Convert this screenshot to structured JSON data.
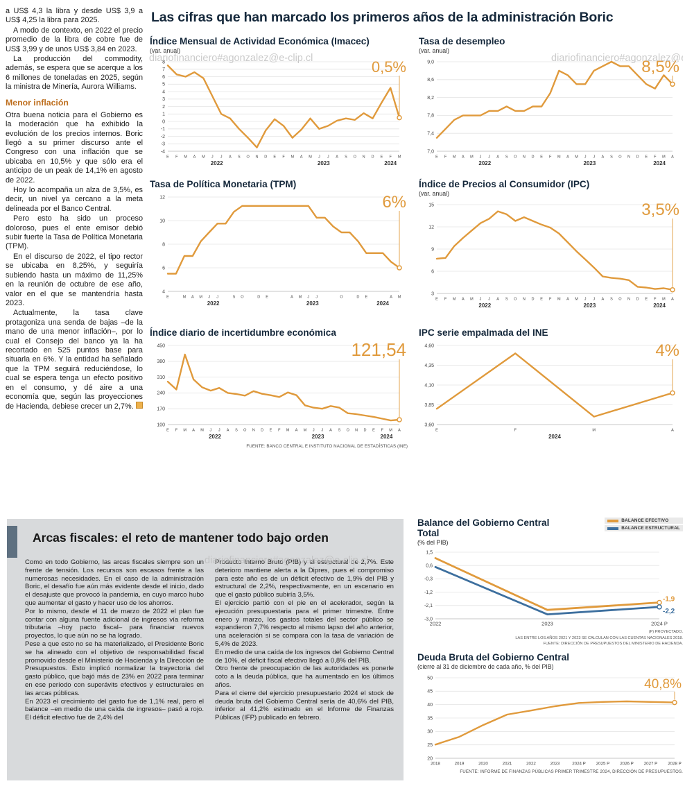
{
  "watermark": "diariofinanciero#agonzalez@e-clip.cl",
  "main_title": "Las cifras que han marcado los primeros años de la administración Boric",
  "charts_source": "FUENTE: BANCO CENTRAL E INSTITUTO NACIONAL DE ESTADÍSTICAS (INE)",
  "colors": {
    "accent_orange": "#E09A3C",
    "accent_blue": "#3D6F9E",
    "headline_navy": "#15283B",
    "subhead_orange": "#BE6F1F",
    "panel_gray": "#D8DADC",
    "title_bar_slate": "#5E7080"
  },
  "left_column": {
    "paragraphs": [
      "a US$ 4,3 la libra y desde US$ 3,9 a US$ 4,25 la libra para 2025.",
      "A modo de contexto, en 2022 el precio promedio de la libra de cobre fue de US$ 3,99 y de unos US$ 3,84 en 2023.",
      "La producción del commodity, además, se espera que se acerque a los 6 millones de toneladas en 2025, según la ministra de Minería, Aurora Williams."
    ],
    "subhead": "Menor inflación",
    "paragraphs_2": [
      "Otra buena noticia para el Gobierno es la moderación que ha exhibido la evolución de los precios internos. Boric llegó a su primer discurso ante el Congreso con una inflación que se ubicaba en 10,5% y que sólo era el anticipo de un peak de 14,1% en agosto de 2022.",
      "Hoy lo acompaña un alza de 3,5%, es decir, un nivel ya cercano a la meta delineada por el Banco Central.",
      "Pero esto ha sido un proceso doloroso, pues el ente emisor debió subir fuerte la Tasa de Política Monetaria (TPM).",
      "En el discurso de 2022, el tipo rector se ubicaba en 8,25%, y seguiría subiendo hasta un máximo de 11,25% en la reunión de octubre de ese año, valor en el que se mantendría hasta 2023.",
      "Actualmente, la tasa clave protagoniza una senda de bajas –de la mano de una menor inflación–, por lo cual el Consejo del banco ya la ha recortado en 525 puntos base para situarla en 6%. Y la entidad ha señalado que la TPM seguirá reduciéndose, lo cual se espera tenga un efecto positivo en el consumo, y dé aire a una economía que, según las proyecciones de Hacienda, debiese crecer un 2,7%."
    ]
  },
  "fiscal_article": {
    "title": "Arcas fiscales: el reto de mantener todo bajo orden",
    "col1": [
      "Como en todo Gobierno, las arcas fiscales siempre son un frente de tensión. Los recursos son escasos frente a las numerosas necesidades. En el caso de la administración Boric, el desafío fue aún más evidente desde el inicio, dado el desajuste que provocó la pandemia, en cuyo marco hubo que aumentar el gasto y hacer uso de los ahorros.",
      "Por lo mismo, desde el 11 de marzo de 2022 el plan fue contar con alguna fuente adicional de ingresos vía reforma tributaria –hoy pacto fiscal– para financiar nuevos proyectos, lo que aún no se ha logrado.",
      "Pese a que esto no se ha materializado, el Presidente Boric se ha alineado con el objetivo de responsabilidad fiscal promovido desde el Ministerio de Hacienda y la Dirección de Presupuestos. Esto implicó normalizar la trayectoria del gasto público, que bajó más de 23% en 2022 para terminar en ese período con superávits efectivos y estructurales en las arcas públicas.",
      "En 2023 el crecimiento del gasto fue de 1,1% real, pero el balance –en medio de una caída de ingresos– pasó a rojo. El déficit efectivo fue de 2,4% del"
    ],
    "col2": [
      "Producto Interno Bruto (PIB) y el estructural de 2,7%. Este deterioro mantiene alerta a la Dipres, pues el compromiso para este año es de un déficit efectivo de 1,9% del PIB y estructural de 2,2%, respectivamente, en un escenario en que el gasto público subiría 3,5%.",
      "El ejercicio partió con el pie en el acelerador, según la ejecución presupuestaria para el primer trimestre. Entre enero y marzo, los gastos totales del sector público se expandieron 7,7% respecto al mismo lapso del año anterior, una aceleración si se compara con la tasa de variación de 5,4% de 2023.",
      "En medio de una caída de los ingresos del Gobierno Central de 10%, el déficit fiscal efectivo llegó a 0,8% del PIB.",
      "Otro frente de preocupación de las autoridades es ponerle coto a la deuda pública, que ha aumentado en los últimos años.",
      "Para el cierre del ejercicio presupuestario 2024 el stock de deuda bruta del Gobierno Central sería de 40,6% del PIB, inferior al 41,2% estimado en el Informe de Finanzas Públicas (IFP) publicado en febrero."
    ]
  },
  "chart_data": [
    {
      "type": "line",
      "title": "Índice Mensual de Actividad Económica (Imacec)",
      "subtitle": "(var. anual)",
      "highlight": "0,5%",
      "color": "#E09A3C",
      "ylim": [
        -4,
        8
      ],
      "ytick_values": [
        8,
        7,
        6,
        5,
        4,
        3,
        2,
        1,
        0,
        -1,
        -2,
        -3,
        -4
      ],
      "ytick_labels": [
        "8",
        "7",
        "6",
        "5",
        "4",
        "3",
        "2",
        "1",
        "0",
        "-1",
        "-2",
        "-3",
        "-4"
      ],
      "xlabels": [
        "E",
        "F",
        "M",
        "A",
        "M",
        "J",
        "J",
        "A",
        "S",
        "O",
        "N",
        "D",
        "E",
        "F",
        "M",
        "A",
        "M",
        "J",
        "J",
        "A",
        "S",
        "O",
        "N",
        "D",
        "E",
        "F",
        "M"
      ],
      "year_labels": [
        {
          "label": "2022",
          "from": 0,
          "to": 11
        },
        {
          "label": "2023",
          "from": 12,
          "to": 23
        },
        {
          "label": "2024",
          "from": 24,
          "to": 26
        }
      ],
      "values": [
        7.5,
        6.3,
        6.0,
        6.6,
        5.8,
        3.4,
        1.0,
        0.4,
        -1.0,
        -2.2,
        -3.5,
        -1.2,
        0.3,
        -0.6,
        -2.2,
        -1.1,
        0.4,
        -1.0,
        -0.6,
        0.1,
        0.4,
        0.2,
        1.1,
        0.4,
        2.5,
        4.5,
        0.5
      ]
    },
    {
      "type": "line",
      "title": "Tasa de desempleo",
      "subtitle": "(var. anual)",
      "highlight": "8,5%",
      "color": "#E09A3C",
      "ylim": [
        7.0,
        9.0
      ],
      "ytick_values": [
        9.0,
        8.6,
        8.2,
        7.8,
        7.4,
        7.0
      ],
      "ytick_labels": [
        "9,0",
        "8,6",
        "8,2",
        "7,8",
        "7,4",
        "7,0"
      ],
      "xlabels": [
        "E",
        "F",
        "M",
        "A",
        "M",
        "J",
        "J",
        "A",
        "S",
        "O",
        "N",
        "D",
        "E",
        "F",
        "M",
        "A",
        "M",
        "J",
        "J",
        "A",
        "S",
        "O",
        "N",
        "D",
        "E",
        "F",
        "M",
        "A"
      ],
      "year_labels": [
        {
          "label": "2022",
          "from": 0,
          "to": 11
        },
        {
          "label": "2023",
          "from": 12,
          "to": 23
        },
        {
          "label": "2024",
          "from": 24,
          "to": 27
        }
      ],
      "values": [
        7.3,
        7.5,
        7.7,
        7.8,
        7.8,
        7.8,
        7.9,
        7.9,
        8.0,
        7.9,
        7.9,
        8.0,
        8.0,
        8.3,
        8.8,
        8.7,
        8.5,
        8.5,
        8.8,
        8.9,
        9.0,
        8.9,
        8.9,
        8.7,
        8.5,
        8.4,
        8.7,
        8.5
      ]
    },
    {
      "type": "line",
      "title": "Tasa de Política Monetaria (TPM)",
      "subtitle": "",
      "highlight": "6%",
      "color": "#E09A3C",
      "ylim": [
        4,
        12
      ],
      "ytick_values": [
        12,
        10,
        8,
        6,
        4
      ],
      "ytick_labels": [
        "12",
        "10",
        "8",
        "6",
        "4"
      ],
      "xlabels": [
        "E",
        "",
        "M",
        "A",
        "M",
        "J",
        "J",
        "",
        "S",
        "O",
        "",
        "D",
        "E",
        "",
        "",
        "A",
        "M",
        "J",
        "J",
        "",
        "",
        "O",
        "",
        "D",
        "E",
        "",
        "",
        "A",
        "M"
      ],
      "year_labels": [
        {
          "label": "2022",
          "from": 0,
          "to": 11
        },
        {
          "label": "2023",
          "from": 12,
          "to": 23
        },
        {
          "label": "2024",
          "from": 24,
          "to": 28
        }
      ],
      "values": [
        5.5,
        5.5,
        7.0,
        7.0,
        8.25,
        9.0,
        9.75,
        9.75,
        10.75,
        11.25,
        11.25,
        11.25,
        11.25,
        11.25,
        11.25,
        11.25,
        11.25,
        11.25,
        10.25,
        10.25,
        9.5,
        9.0,
        9.0,
        8.25,
        7.25,
        7.25,
        7.25,
        6.5,
        6.0
      ]
    },
    {
      "type": "line",
      "title": "Índice de Precios al Consumidor (IPC)",
      "subtitle": "(var. anual)",
      "highlight": "3,5%",
      "color": "#E09A3C",
      "ylim": [
        3,
        15
      ],
      "ytick_values": [
        15,
        12,
        9,
        6,
        3
      ],
      "ytick_labels": [
        "15",
        "12",
        "9",
        "6",
        "3"
      ],
      "xlabels": [
        "E",
        "F",
        "M",
        "A",
        "M",
        "J",
        "J",
        "A",
        "S",
        "O",
        "N",
        "D",
        "E",
        "F",
        "M",
        "A",
        "M",
        "J",
        "J",
        "A",
        "S",
        "O",
        "N",
        "D",
        "E",
        "F",
        "M",
        "A"
      ],
      "year_labels": [
        {
          "label": "2022",
          "from": 0,
          "to": 11
        },
        {
          "label": "2023",
          "from": 12,
          "to": 23
        },
        {
          "label": "2024",
          "from": 24,
          "to": 27
        }
      ],
      "values": [
        7.7,
        7.8,
        9.4,
        10.5,
        11.5,
        12.5,
        13.1,
        14.1,
        13.7,
        12.8,
        13.3,
        12.8,
        12.3,
        11.9,
        11.1,
        9.9,
        8.7,
        7.6,
        6.5,
        5.3,
        5.1,
        5.0,
        4.8,
        3.9,
        3.8,
        3.6,
        3.7,
        3.5
      ]
    },
    {
      "type": "line",
      "title": "Índice diario de incertidumbre económica",
      "subtitle": "",
      "highlight": "121,54",
      "color": "#E09A3C",
      "ylim": [
        100,
        450
      ],
      "ytick_values": [
        450,
        380,
        310,
        240,
        170,
        100
      ],
      "ytick_labels": [
        "450",
        "380",
        "310",
        "240",
        "170",
        "100"
      ],
      "xlabels": [
        "E",
        "F",
        "M",
        "A",
        "M",
        "J",
        "J",
        "A",
        "S",
        "O",
        "N",
        "D",
        "E",
        "F",
        "M",
        "A",
        "M",
        "J",
        "J",
        "A",
        "S",
        "O",
        "N",
        "D",
        "E",
        "F",
        "M",
        "A"
      ],
      "year_labels": [
        {
          "label": "2022",
          "from": 0,
          "to": 11
        },
        {
          "label": "2023",
          "from": 12,
          "to": 23
        },
        {
          "label": "2024",
          "from": 24,
          "to": 27
        }
      ],
      "values": [
        290,
        255,
        410,
        300,
        265,
        250,
        262,
        240,
        235,
        228,
        248,
        236,
        230,
        222,
        242,
        230,
        185,
        175,
        170,
        182,
        175,
        150,
        146,
        140,
        134,
        126,
        118,
        121.54
      ]
    },
    {
      "type": "line",
      "title": "IPC serie empalmada del INE",
      "subtitle": "",
      "highlight": "4%",
      "color": "#E09A3C",
      "ylim": [
        3.6,
        4.6
      ],
      "ytick_values": [
        4.6,
        4.35,
        4.1,
        3.85,
        3.6
      ],
      "ytick_labels": [
        "4,60",
        "4,35",
        "4,10",
        "3,85",
        "3,60"
      ],
      "xlabels": [
        "E",
        "F",
        "M",
        "A"
      ],
      "year_labels": [
        {
          "label": "2024",
          "from": 0,
          "to": 3
        }
      ],
      "values": [
        3.8,
        4.5,
        3.7,
        4.0
      ]
    },
    {
      "type": "line",
      "title": "Balance del Gobierno Central Total",
      "subtitle": "(% del PIB)",
      "ylim": [
        -3.0,
        1.5
      ],
      "ytick_values": [
        1.5,
        0.6,
        -0.3,
        -1.2,
        -2.1,
        -3.0
      ],
      "ytick_labels": [
        "1,5",
        "0,6",
        "-0,3",
        "-1,2",
        "-2,1",
        "-3,0"
      ],
      "ytick_size": 7,
      "xlabel_size": 7.5,
      "xlabels": [
        "2022",
        "2023",
        "2024 P"
      ],
      "stroke": 2.8,
      "series": [
        {
          "name": "BALANCE EFECTIVO",
          "color": "#E09A3C",
          "values": [
            1.1,
            -2.4,
            -1.9
          ],
          "end_label": "-1,9"
        },
        {
          "name": "BALANCE ESTRUCTURAL",
          "color": "#3D6F9E",
          "values": [
            0.5,
            -2.7,
            -2.2
          ],
          "end_label": "-2,2"
        }
      ],
      "notes": [
        "(P) PROYECTADO.",
        "LAS ENTRE LOS AÑOS 2021 Y 2023 SE CALCULAN CON LAS CUENTAS NACIONALES 2018.",
        "FUENTE: DIRECCIÓN DE PRESUPUESTOS DEL MINISTERIO DE HACIENDA."
      ]
    },
    {
      "type": "line",
      "title": "Deuda Bruta del Gobierno Central",
      "subtitle": "(cierre al 31 de diciembre de cada año, % del PIB)",
      "highlight": "40,8%",
      "color": "#E09A3C",
      "ylim": [
        20,
        50
      ],
      "ytick_values": [
        50,
        45,
        40,
        35,
        30,
        25,
        20
      ],
      "ytick_labels": [
        "50",
        "45",
        "40",
        "35",
        "30",
        "25",
        "20"
      ],
      "ytick_size": 7,
      "xlabel_size": 6.2,
      "xlabels": [
        "2018",
        "2019",
        "2020",
        "2021",
        "2022",
        "2023",
        "2024 P",
        "2025 P",
        "2026 P",
        "2027 P",
        "2028 P"
      ],
      "values": [
        25.1,
        28.0,
        32.4,
        36.3,
        37.8,
        39.4,
        40.6,
        41.0,
        41.2,
        41.0,
        40.8
      ],
      "source": "FUENTE: INFORME DE FINANZAS PÚBLICAS PRIMER TRIMESTRE 2024, DIRECCIÓN DE PRESUPUESTOS."
    }
  ]
}
